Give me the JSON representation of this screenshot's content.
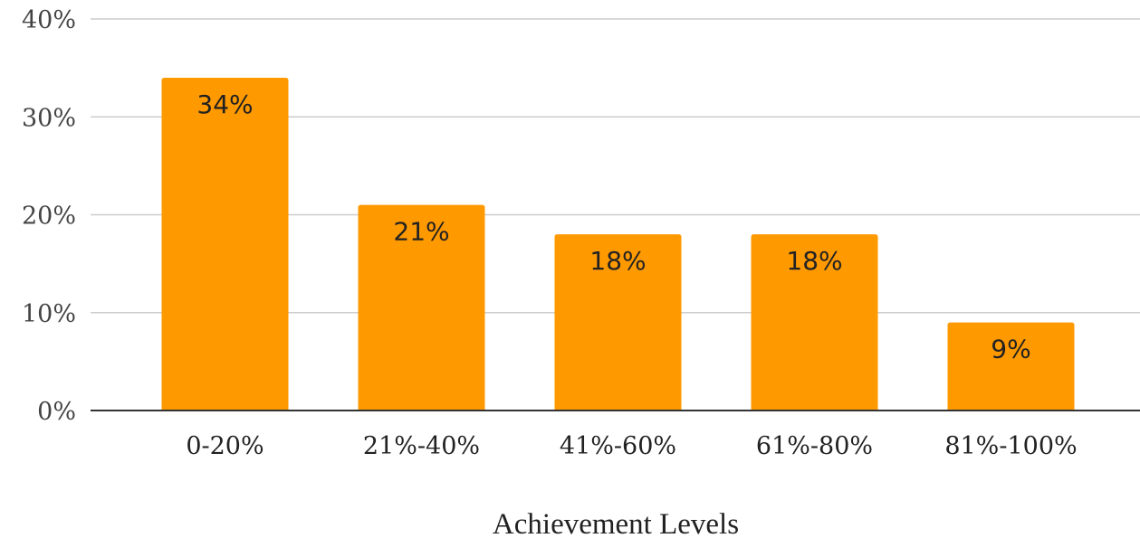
{
  "chart_data": {
    "type": "bar",
    "title": "",
    "xlabel": "Achievement Levels",
    "ylabel": "",
    "categories": [
      "0-20%",
      "21%-40%",
      "41%-60%",
      "61%-80%",
      "81%-100%"
    ],
    "values": [
      34,
      21,
      18,
      18,
      9
    ],
    "data_labels": [
      "34%",
      "21%",
      "18%",
      "18%",
      "9%"
    ],
    "ylim": [
      0,
      40
    ],
    "yticks": [
      0,
      10,
      20,
      30,
      40
    ],
    "ytick_labels": [
      "0%",
      "10%",
      "20%",
      "30%",
      "40%"
    ],
    "grid": true,
    "legend": "none",
    "colors": {
      "bar": "#FF9900",
      "gridline": "#CCCCCC",
      "baseline": "#333333"
    }
  }
}
